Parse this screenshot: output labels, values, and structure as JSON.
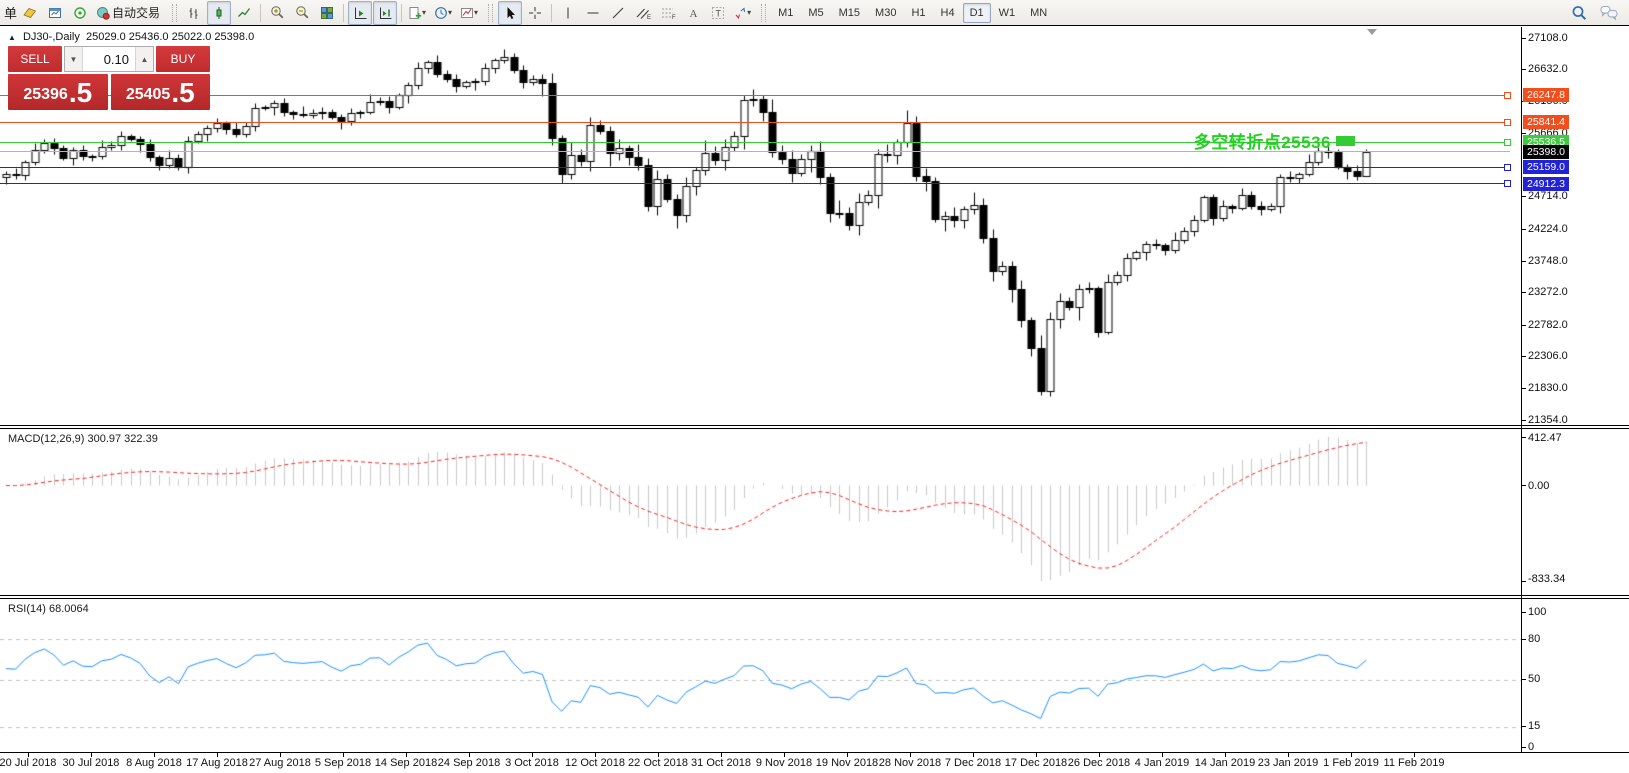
{
  "toolbar": {
    "left_fragment": "单",
    "autotrading_label": "自动交易",
    "icon_names": [
      "new-order-icon",
      "chart-window-icon",
      "signal-icon",
      "autotrading-icon",
      "bar-chart-icon",
      "candlestick-icon",
      "line-chart-icon",
      "zoom-in-icon",
      "zoom-out-icon",
      "tile-windows-icon",
      "auto-scroll-icon",
      "chart-shift-icon",
      "indicators-icon",
      "periods-icon",
      "templates-icon",
      "cursor-icon",
      "crosshair-icon",
      "vertical-line-icon",
      "horizontal-line-icon",
      "trendline-icon",
      "equidistant-channel-icon",
      "fibonacci-icon",
      "text-icon",
      "text-label-icon",
      "arrows-icon",
      "search-icon",
      "chat-icon"
    ],
    "glyphs": {
      "channel_sub": "E",
      "fibo_sub": "F",
      "text_a": "A",
      "text_t": "T"
    },
    "timeframes": [
      {
        "label": "M1",
        "active": false
      },
      {
        "label": "M5",
        "active": false
      },
      {
        "label": "M15",
        "active": false
      },
      {
        "label": "M30",
        "active": false
      },
      {
        "label": "H1",
        "active": false
      },
      {
        "label": "H4",
        "active": false
      },
      {
        "label": "D1",
        "active": true
      },
      {
        "label": "W1",
        "active": false
      },
      {
        "label": "MN",
        "active": false
      }
    ]
  },
  "chart": {
    "title": {
      "collapse_glyph": "▲",
      "symbol_period": "DJ30-,Daily",
      "ohlc": "25029.0 25436.0 25022.0 25398.0"
    },
    "trade_panel": {
      "sell_label": "SELL",
      "buy_label": "BUY",
      "volume": "0.10",
      "down_glyph": "▼",
      "up_glyph": "▲",
      "sell_price_main": "25396",
      "sell_price_big": ".5",
      "buy_price_main": "25405",
      "buy_price_big": ".5",
      "red": "#c52f31"
    },
    "annotation": {
      "text": "多空转折点25536",
      "color": "#22d122",
      "marker_color": "#33cc33"
    },
    "levels": [
      {
        "price": 26247.8,
        "label": "26247.8",
        "color": "#f04e1c",
        "badge": "#f04e1c",
        "marker": true
      },
      {
        "price": 25841.4,
        "label": "25841.4",
        "color": "#f04e1c",
        "badge": "#f04e1c",
        "marker": true
      },
      {
        "price": 25536.5,
        "label": "25536.5",
        "color": "#33cc33",
        "badge": "#3fca3f",
        "marker": true
      },
      {
        "price": 25398.0,
        "label": "25398.0",
        "color": "#b3b3b3",
        "badge": "#000000",
        "marker": false
      },
      {
        "price": 25159.0,
        "label": "25159.0",
        "color": "#2222cc",
        "badge": "#2323d6",
        "marker": true
      },
      {
        "price": 24912.3,
        "label": "24912.3",
        "color": "#2222cc",
        "badge": "#2323d6",
        "marker": true
      }
    ],
    "y_axis": {
      "max_price": 27108,
      "min_price": 21354,
      "ticks": [
        {
          "label": "27108.0",
          "price": 27108
        },
        {
          "label": "26632.0",
          "price": 26632
        },
        {
          "label": "26156.0",
          "price": 26156
        },
        {
          "label": "25666.0",
          "price": 25666
        },
        {
          "label": "24714.0",
          "price": 24714
        },
        {
          "label": "24224.0",
          "price": 24224
        },
        {
          "label": "23748.0",
          "price": 23748
        },
        {
          "label": "23272.0",
          "price": 23272
        },
        {
          "label": "22782.0",
          "price": 22782
        },
        {
          "label": "22306.0",
          "price": 22306
        },
        {
          "label": "21830.0",
          "price": 21830
        },
        {
          "label": "21354.0",
          "price": 21354
        }
      ]
    },
    "x_axis": {
      "labels": [
        "20 Jul 2018",
        "30 Jul 2018",
        "8 Aug 2018",
        "17 Aug 2018",
        "27 Aug 2018",
        "5 Sep 2018",
        "14 Sep 2018",
        "24 Sep 2018",
        "3 Oct 2018",
        "12 Oct 2018",
        "22 Oct 2018",
        "31 Oct 2018",
        "9 Nov 2018",
        "19 Nov 2018",
        "28 Nov 2018",
        "7 Dec 2018",
        "17 Dec 2018",
        "26 Dec 2018",
        "4 Jan 2019",
        "14 Jan 2019",
        "23 Jan 2019",
        "1 Feb 2019",
        "11 Feb 2019"
      ]
    }
  },
  "macd": {
    "label": "MACD(12,26,9) 300.97 322.39",
    "fast": 12,
    "slow": 26,
    "signal": 9,
    "scale_max": "412.47",
    "scale_zero": "0.00",
    "scale_min": "-833.34",
    "hist_color": "#c8c8c8",
    "signal_color": "#ff2222"
  },
  "rsi": {
    "label": "RSI(14) 68.0064",
    "period": 14,
    "value": 68.0064,
    "line_color": "#1e90ff",
    "level_color": "#c0c0c0",
    "levels": [
      80,
      50,
      15
    ],
    "scale_labels": [
      {
        "label": "100",
        "value": 100
      },
      {
        "label": "80",
        "value": 80
      },
      {
        "label": "50",
        "value": 50
      },
      {
        "label": "15",
        "value": 15
      },
      {
        "label": "0",
        "value": 0
      }
    ]
  },
  "chart_data": {
    "type": "candlestick",
    "symbol": "DJ30",
    "timeframe": "Daily",
    "bull_color": "#ffffff",
    "bear_color": "#000000",
    "outline_color": "#000000",
    "last_candle": {
      "open": 25029.0,
      "high": 25436.0,
      "low": 25022.0,
      "close": 25398.0
    },
    "wick_pattern": [
      45,
      85,
      30,
      115,
      60,
      75,
      40
    ],
    "volatile_range": [
      55,
      112
    ],
    "volatile_factor": 1.7,
    "closes": [
      25058,
      25045,
      25242,
      25414,
      25527,
      25451,
      25307,
      25415,
      25334,
      25327,
      25463,
      25502,
      25628,
      25584,
      25509,
      25313,
      25188,
      25300,
      25162,
      25559,
      25669,
      25759,
      25822,
      25734,
      25657,
      25790,
      26050,
      26064,
      26125,
      25987,
      25965,
      25953,
      25975,
      25996,
      25917,
      25857,
      25971,
      25999,
      26146,
      26155,
      26062,
      26246,
      26405,
      26657,
      26744,
      26562,
      26492,
      26385,
      26440,
      26458,
      26651,
      26774,
      26828,
      26627,
      26447,
      26487,
      26430,
      25599,
      25053,
      25340,
      25251,
      25798,
      25707,
      25379,
      25444,
      25317,
      25191,
      24583,
      24985,
      24688,
      24443,
      24875,
      25116,
      25381,
      25271,
      25462,
      25635,
      26180,
      26191,
      25989,
      25387,
      25286,
      25081,
      25289,
      25413,
      25017,
      24466,
      24465,
      24286,
      24640,
      24748,
      25366,
      25339,
      25538,
      25826,
      25027,
      24948,
      24389,
      24423,
      24370,
      24527,
      24597,
      24101,
      23593,
      23676,
      23324,
      22860,
      22445,
      21792,
      22878,
      23139,
      23062,
      23327,
      23346,
      22686,
      23433,
      23531,
      23787,
      23879,
      24002,
      23996,
      23910,
      24066,
      24207,
      24370,
      24706,
      24404,
      24576,
      24553,
      24737,
      24575,
      24528,
      24580,
      25015,
      24999,
      25064,
      25239,
      25411,
      25390,
      25170,
      25106,
      25029,
      25398
    ]
  }
}
